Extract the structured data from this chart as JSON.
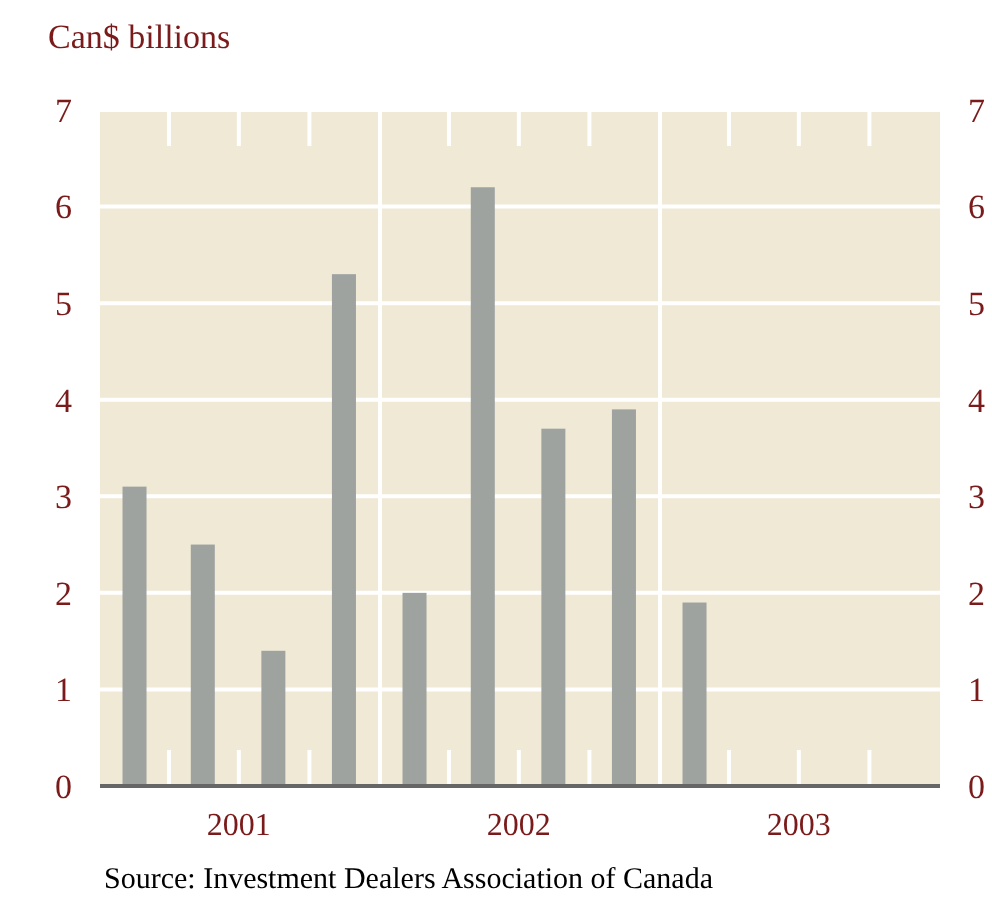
{
  "chart_data": {
    "type": "bar",
    "ylabel": "Can$ billions",
    "x": [
      "2001-02-15",
      "2001-05-15",
      "2001-08-15",
      "2001-11-15",
      "2002-02-15",
      "2002-05-15",
      "2002-08-15",
      "2002-11-15",
      "2003-02-15"
    ],
    "values": [
      3.1,
      2.5,
      1.4,
      5.3,
      2.0,
      6.2,
      3.7,
      3.9,
      1.9
    ],
    "color": "#9ea3a0",
    "xlim": [
      "2001-01-01",
      "2004-01-01"
    ],
    "xticks": [
      {
        "value": "2001-07-01",
        "label": "2001"
      },
      {
        "value": "2002-07-01",
        "label": "2002"
      },
      {
        "value": "2003-07-01",
        "label": "2003"
      }
    ],
    "ylim": [
      0,
      7
    ],
    "yticks": [
      0,
      1,
      2,
      3,
      4,
      5,
      6,
      7
    ],
    "y2lim": [
      0,
      7
    ],
    "y2ticks": [
      0,
      1,
      2,
      3,
      4,
      5,
      6,
      7
    ],
    "grid": "y",
    "ref_lines": [
      {
        "axis": "x",
        "value": "2002-01-01",
        "label": null,
        "color": "#ffffff"
      },
      {
        "axis": "x",
        "value": "2003-01-01",
        "label": null,
        "color": "#ffffff"
      }
    ],
    "annotations": [
      "Source: Investment Dealers Association of Canada"
    ]
  }
}
